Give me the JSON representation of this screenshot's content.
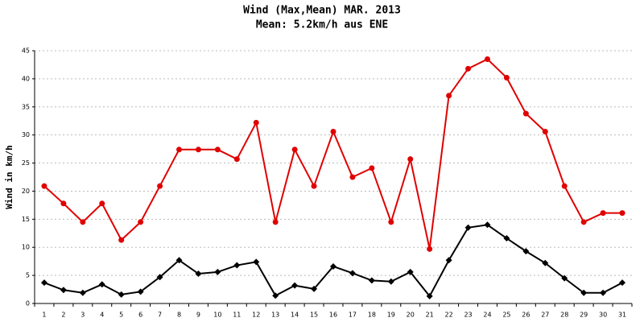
{
  "chart_data": {
    "type": "line",
    "title": "Wind (Max,Mean) MAR. 2013",
    "subtitle": "Mean: 5.2km/h aus ENE",
    "y_label": "Wind in km/h",
    "categories": [
      "1",
      "2",
      "3",
      "4",
      "5",
      "6",
      "7",
      "8",
      "9",
      "10",
      "11",
      "12",
      "13",
      "14",
      "15",
      "16",
      "17",
      "18",
      "19",
      "20",
      "21",
      "22",
      "23",
      "24",
      "25",
      "26",
      "27",
      "28",
      "29",
      "30",
      "31"
    ],
    "series": [
      {
        "color": "#e00000",
        "marker": "circle",
        "values": [
          20.9,
          17.8,
          14.5,
          17.8,
          11.3,
          14.5,
          20.9,
          27.4,
          27.4,
          27.4,
          25.7,
          32.2,
          14.5,
          27.4,
          20.9,
          30.6,
          22.5,
          24.1,
          14.5,
          25.7,
          9.7,
          37.0,
          41.8,
          43.5,
          40.2,
          33.8,
          30.6,
          20.9,
          14.5,
          16.1,
          16.1
        ]
      },
      {
        "color": "#000000",
        "marker": "diamond",
        "values": [
          3.7,
          2.4,
          1.9,
          3.4,
          1.6,
          2.1,
          4.7,
          7.7,
          5.3,
          5.6,
          6.8,
          7.4,
          1.4,
          3.2,
          2.6,
          6.6,
          5.4,
          4.1,
          3.9,
          5.6,
          1.3,
          7.7,
          13.5,
          14.0,
          11.6,
          9.3,
          7.2,
          4.5,
          1.9,
          1.9,
          3.7
        ]
      }
    ],
    "ylim": [
      0,
      45
    ],
    "yticks": [
      0,
      5,
      10,
      15,
      20,
      25,
      30,
      35,
      40,
      45
    ],
    "grid": true
  }
}
